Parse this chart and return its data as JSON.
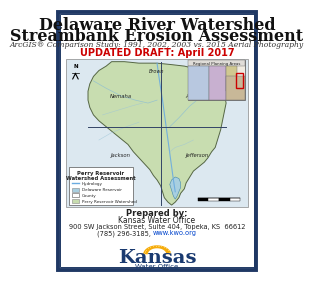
{
  "title_line1": "Delaware River Watershed",
  "title_line2": "Streambank Erosion Assessment",
  "subtitle": "ArcGIS® Comparison Study: 1991, 2002, 2003 vs. 2015 Aerial Photography",
  "draft_label": "UPDATED DRAFT: April 2017",
  "draft_color": "#cc0000",
  "prepared_by": "Prepared by:",
  "org_name": "Kansas Water Office",
  "address": "900 SW Jackson Street, Suite 404, Topeka, KS  66612",
  "phone_web": "(785) 296-3185,",
  "website": "www.kwo.org",
  "border_color": "#1f3864",
  "bg_color": "#ffffff",
  "title_fontsize": 11.5,
  "subtitle_fontsize": 5.5,
  "draft_fontsize": 7,
  "body_fontsize": 5.5,
  "map_green": "#c8ddb0",
  "map_water_color": "#a8cfe0",
  "map_bg_color": "#e8f0f8"
}
